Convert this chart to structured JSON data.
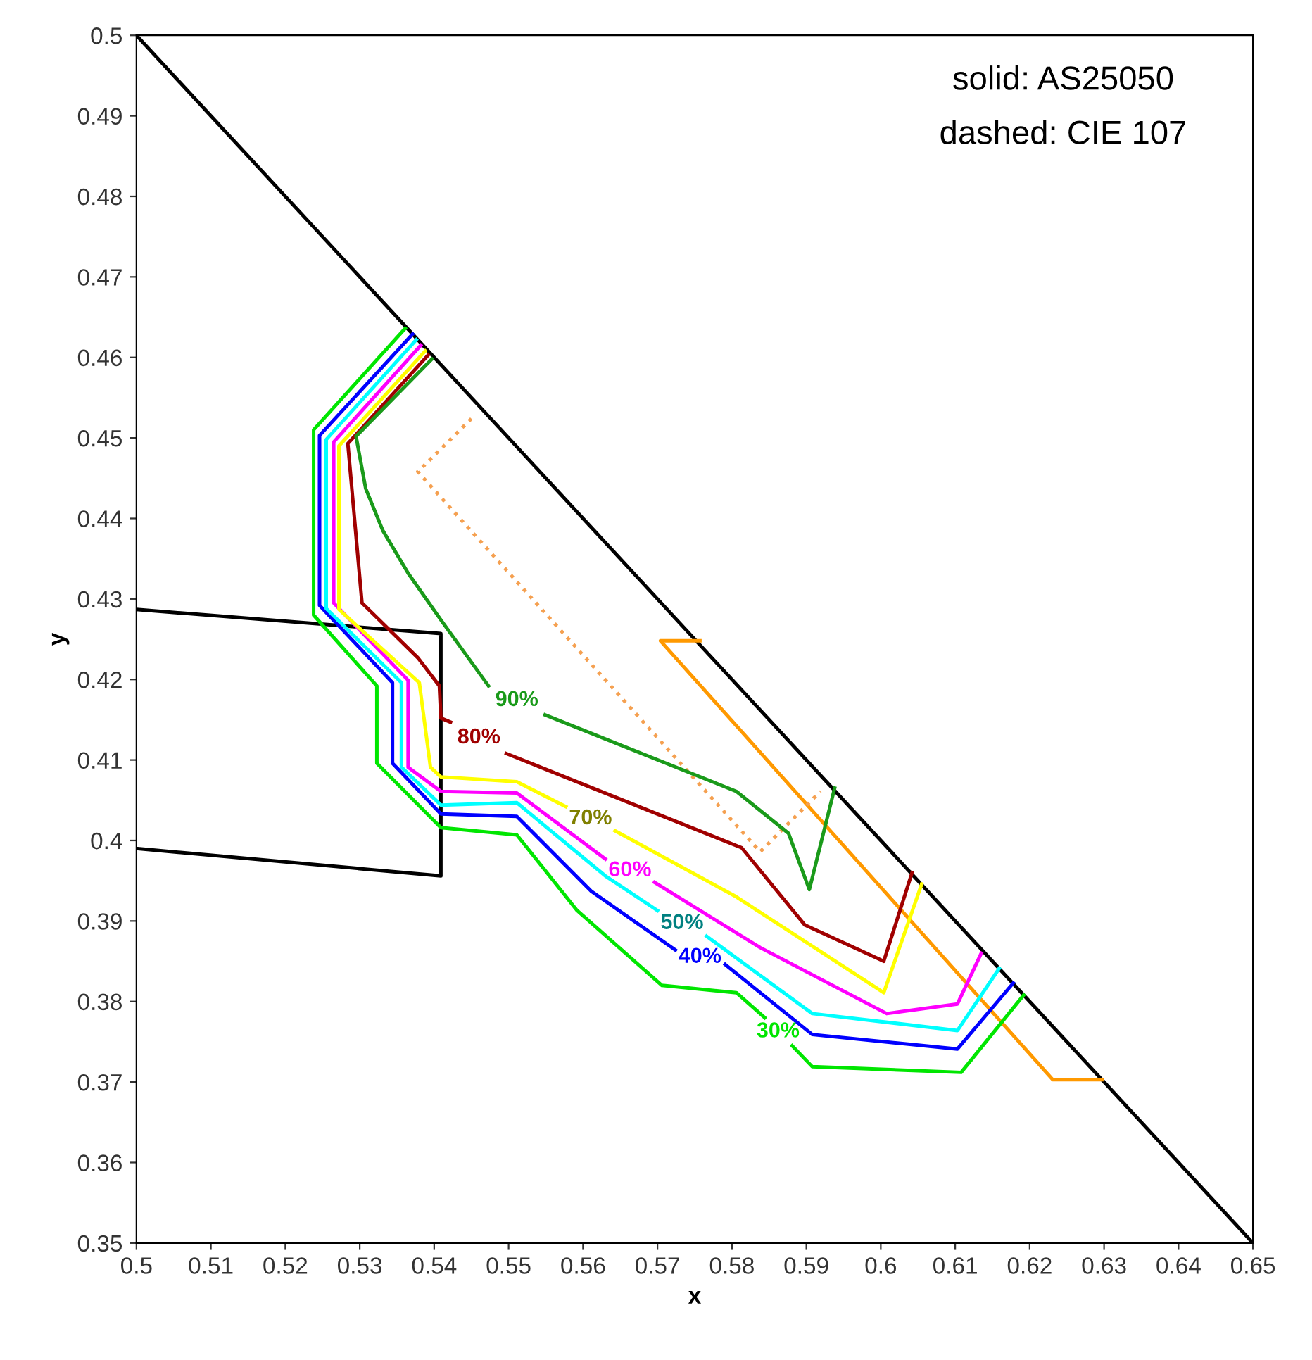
{
  "chart_data": {
    "type": "line",
    "xlabel": "x",
    "ylabel": "y",
    "xlim": [
      0.5,
      0.65
    ],
    "ylim": [
      0.35,
      0.5
    ],
    "xticks": [
      0.5,
      0.51,
      0.52,
      0.53,
      0.54,
      0.55,
      0.56,
      0.57,
      0.58,
      0.59,
      0.6,
      0.61,
      0.62,
      0.63,
      0.64,
      0.65
    ],
    "yticks": [
      0.35,
      0.36,
      0.37,
      0.38,
      0.39,
      0.4,
      0.41,
      0.42,
      0.43,
      0.44,
      0.45,
      0.46,
      0.47,
      0.48,
      0.49,
      0.5
    ],
    "grid": false,
    "marker": "none",
    "line_style": "solid",
    "annotations": [
      "solid: AS25050",
      "dashed: CIE 107"
    ],
    "series": [
      {
        "color": "#000000",
        "x": [
          0.5,
          0.65
        ],
        "values": [
          0.5,
          0.35
        ]
      },
      {
        "color": "#000000",
        "x": [
          0.5,
          0.5409,
          0.5409,
          0.5
        ],
        "values": [
          0.4287,
          0.4257,
          0.3956,
          0.399
        ]
      },
      {
        "color": "#ff9900",
        "x": [
          0.5757,
          0.5704,
          0.6231,
          0.6297
        ],
        "values": [
          0.4248,
          0.4248,
          0.3703,
          0.3703
        ]
      },
      {
        "color": "#f5a050",
        "line_style": "dotted",
        "x": [
          0.545,
          0.5378,
          0.5838,
          0.5919
        ],
        "values": [
          0.4524,
          0.4458,
          0.3986,
          0.4061
        ]
      },
      {
        "name": "30%",
        "color": "#00e600",
        "x": [
          0.5361,
          0.5238,
          0.5238,
          0.5323,
          0.5323,
          0.5409,
          0.5511,
          0.5592,
          0.5706,
          0.5806,
          0.5844,
          0.5862,
          0.5881,
          0.5908,
          0.6108,
          0.6192
        ],
        "values": [
          0.4636,
          0.451,
          0.428,
          0.4192,
          0.4096,
          0.4016,
          0.4007,
          0.3913,
          0.382,
          0.3811,
          0.378,
          null,
          0.3745,
          0.3719,
          0.3712,
          0.3808
        ]
      },
      {
        "name": "40%",
        "color": "#0000ff",
        "x": [
          0.5371,
          0.5246,
          0.5246,
          0.5344,
          0.5344,
          0.5409,
          0.5511,
          0.5611,
          0.5724,
          0.5757,
          0.5791,
          0.5908,
          0.6103,
          0.6178
        ],
        "values": [
          0.4629,
          0.4503,
          0.4292,
          0.4196,
          0.4096,
          0.4033,
          0.403,
          0.3937,
          0.3864,
          null,
          0.3846,
          0.3759,
          0.3741,
          0.3823
        ]
      },
      {
        "name": "50%",
        "color": "#00ffff",
        "x": [
          0.5376,
          0.5255,
          0.5255,
          0.5356,
          0.5356,
          0.5409,
          0.5511,
          0.563,
          0.57,
          0.5733,
          0.5766,
          0.5908,
          0.6103,
          0.6159
        ],
        "values": [
          0.4622,
          0.4498,
          0.4288,
          0.4196,
          0.4091,
          0.4044,
          0.4047,
          0.3956,
          0.3913,
          null,
          0.3881,
          0.3785,
          0.3764,
          0.3841
        ]
      },
      {
        "name": "60%",
        "color": "#ff00ff",
        "x": [
          0.5382,
          0.5265,
          0.5265,
          0.5365,
          0.5365,
          0.5409,
          0.5511,
          0.563,
          0.5663,
          0.5696,
          0.5838,
          0.6008,
          0.6103,
          0.6135
        ],
        "values": [
          0.4615,
          0.4495,
          0.4295,
          0.4199,
          0.4091,
          0.4061,
          0.4059,
          0.3977,
          null,
          0.3948,
          0.3867,
          0.3785,
          0.3797,
          0.386
        ]
      },
      {
        "name": "70%",
        "color": "#ffff00",
        "x": [
          0.5388,
          0.5272,
          0.5272,
          0.538,
          0.5395,
          0.5409,
          0.5511,
          0.5577,
          0.561,
          0.5643,
          0.5806,
          0.6004,
          0.6055
        ],
        "values": [
          0.4608,
          0.449,
          0.4287,
          0.4196,
          0.4091,
          0.4079,
          0.4073,
          0.4042,
          null,
          0.4012,
          0.393,
          0.3811,
          0.3946
        ]
      },
      {
        "name": "80%",
        "color": "#a00000",
        "x": [
          0.5392,
          0.5284,
          0.5303,
          0.5378,
          0.5407,
          0.5409,
          0.5422,
          0.546,
          0.5497,
          0.5813,
          0.5898,
          0.6004,
          0.6042
        ],
        "values": [
          0.4603,
          0.4493,
          0.4295,
          0.4227,
          0.4192,
          0.4152,
          0.4147,
          null,
          0.4108,
          0.3991,
          0.3895,
          0.385,
          0.396
        ]
      },
      {
        "name": "90%",
        "color": "#1a9a1a",
        "x": [
          0.5397,
          0.5295,
          0.5308,
          0.5331,
          0.5365,
          0.5409,
          0.5473,
          0.5511,
          0.5549,
          0.5806,
          0.5876,
          0.5904,
          0.5938
        ],
        "values": [
          0.4598,
          0.4502,
          0.4437,
          0.4385,
          0.4332,
          0.4274,
          0.4192,
          null,
          0.4156,
          0.4061,
          0.4009,
          0.3939,
          0.4065
        ]
      }
    ]
  }
}
